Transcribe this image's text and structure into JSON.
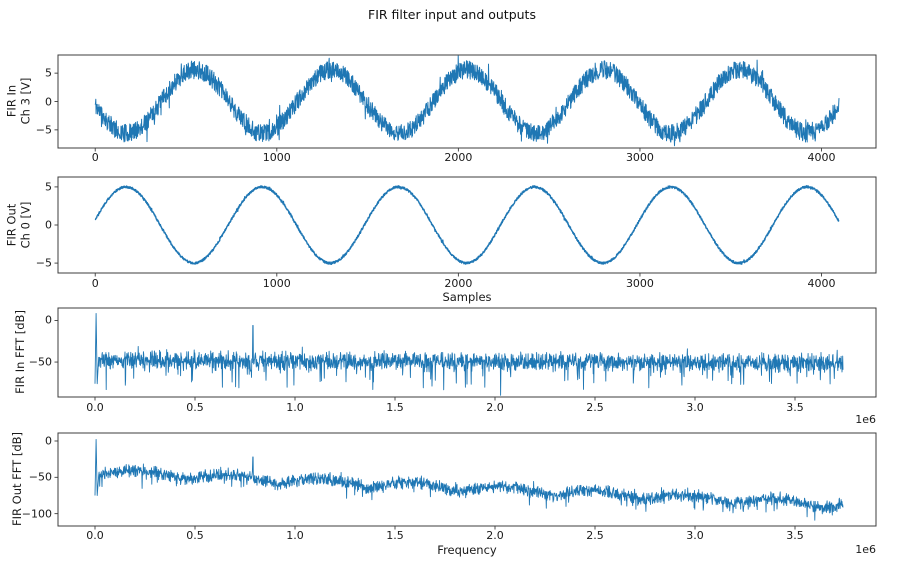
{
  "figure": {
    "title": "FIR filter input and outputs",
    "background_color": "#ffffff",
    "line_color": "#1f77b4",
    "frame_color": "#3c3c3c",
    "text_color": "#1a1a1a"
  },
  "chart_data": [
    {
      "id": "fir-in-time",
      "type": "line",
      "ylabel": "FIR In\nCh 3 [V]",
      "xlabel": null,
      "legend": null,
      "grid": false,
      "line_color": "#1f77b4",
      "xlim": [
        -205,
        4300
      ],
      "ylim": [
        -8.2,
        8.2
      ],
      "xticks": {
        "values": [
          0,
          1000,
          2000,
          3000,
          4000
        ],
        "labels": [
          "0",
          "1000",
          "2000",
          "3000",
          "4000"
        ]
      },
      "yticks": {
        "values": [
          5,
          0,
          -5
        ],
        "labels": [
          "5",
          "0",
          "−5"
        ]
      },
      "signal": {
        "kind": "noisy_sine",
        "description": "noisy sine wave: ~5.4 cycles over 4096 samples, amplitude ≈5.6 V with ≈±1.6 V wideband noise",
        "n_samples": 4096,
        "amplitude_v": 5.6,
        "period_samples": 750,
        "rising_zero_at_sample": 362.5,
        "noise_halfwidth_v": 1.6,
        "peak_values_at_samples": [
          550,
          1300,
          2050,
          2800,
          3550
        ],
        "approx_peak_v": 7.2,
        "approx_min_v": -7.2
      }
    },
    {
      "id": "fir-out-time",
      "type": "line",
      "ylabel": "FIR Out\nCh 0 [V]",
      "xlabel": "Samples",
      "legend": null,
      "grid": false,
      "line_color": "#1f77b4",
      "xlim": [
        -205,
        4300
      ],
      "ylim": [
        -6.3,
        6.3
      ],
      "xticks": {
        "values": [
          0,
          1000,
          2000,
          3000,
          4000
        ],
        "labels": [
          "0",
          "1000",
          "2000",
          "3000",
          "4000"
        ]
      },
      "yticks": {
        "values": [
          5,
          0,
          -5
        ],
        "labels": [
          "5",
          "0",
          "−5"
        ]
      },
      "signal": {
        "kind": "noisy_sine",
        "description": "filtered clean sine: ~5.5 cycles over 4096 samples, amplitude ≈5.0 V, tiny residual ripple",
        "n_samples": 4096,
        "amplitude_v": 5.0,
        "period_samples": 750,
        "rising_zero_at_sample": -17.5,
        "noise_halfwidth_v": 0.14,
        "peak_values_at_samples": [
          170,
          920,
          1670,
          2420,
          3170,
          3920
        ],
        "approx_peak_v": 5.0,
        "approx_min_v": -5.0
      }
    },
    {
      "id": "fir-in-fft",
      "type": "line",
      "ylabel": "FIR In FFT [dB]",
      "xlabel": null,
      "offset_text": "1e6",
      "legend": null,
      "grid": false,
      "line_color": "#1f77b4",
      "xlim": [
        -185000,
        3905000
      ],
      "ylim": [
        -92,
        15
      ],
      "xticks": {
        "values": [
          0,
          500000,
          1000000,
          1500000,
          2000000,
          2500000,
          3000000,
          3500000
        ],
        "labels": [
          "0.0",
          "0.5",
          "1.0",
          "1.5",
          "2.0",
          "2.5",
          "3.0",
          "3.5"
        ]
      },
      "yticks": {
        "values": [
          0,
          -50
        ],
        "labels": [
          "0",
          "−50"
        ]
      },
      "signal": {
        "kind": "fft",
        "description": "flat noisy spectrum centered ≈−50 dB with DC/fundamental spike to ≈+8 dB and a tone spike near 0.8 MHz reaching ≈−6 dB; deep notches down to ≈−88 dB",
        "x_max_hz": 3740000,
        "band_center_start_db": -48,
        "band_center_end_db": -51,
        "noise_halfwidth_db": 13,
        "deep_spike_prob": 0.07,
        "deep_spike_max_extra_db": 30,
        "dc_spike_peak_db": 8.5,
        "dc_spike_base_db": -76,
        "tone_spike": {
          "x_hz": 790000,
          "peak_db": -6
        },
        "lobe_period_hz": 0,
        "lobe_amp_db": 0
      }
    },
    {
      "id": "fir-out-fft",
      "type": "line",
      "ylabel": "FIR Out FFT [dB]",
      "xlabel": "Frequency",
      "offset_text": "1e6",
      "legend": null,
      "grid": false,
      "line_color": "#1f77b4",
      "xlim": [
        -185000,
        3905000
      ],
      "ylim": [
        -117,
        11
      ],
      "xticks": {
        "values": [
          0,
          500000,
          1000000,
          1500000,
          2000000,
          2500000,
          3000000,
          3500000
        ],
        "labels": [
          "0.0",
          "0.5",
          "1.0",
          "1.5",
          "2.0",
          "2.5",
          "3.0",
          "3.5"
        ]
      },
      "yticks": {
        "values": [
          0,
          -50,
          -100
        ],
        "labels": [
          "0",
          "−50",
          "−100"
        ]
      },
      "signal": {
        "kind": "fft",
        "description": "low-pass shaped spectrum: band center falls from ≈−43 dB to ≈−88 dB across 0–3.74 MHz with scalloped lobes (~0.46 MHz spacing), DC spike to ≈+2 dB, tone spike near 0.8 MHz reaching ≈−22 dB",
        "x_max_hz": 3740000,
        "band_center_start_db": -43,
        "band_center_end_db": -88,
        "noise_halfwidth_db": 10,
        "deep_spike_prob": 0.06,
        "deep_spike_max_extra_db": 16,
        "dc_spike_peak_db": 2,
        "dc_spike_base_db": -75,
        "tone_spike": {
          "x_hz": 790000,
          "peak_db": -22
        },
        "lobe_period_hz": 455000,
        "lobe_amp_db": 10
      }
    }
  ]
}
